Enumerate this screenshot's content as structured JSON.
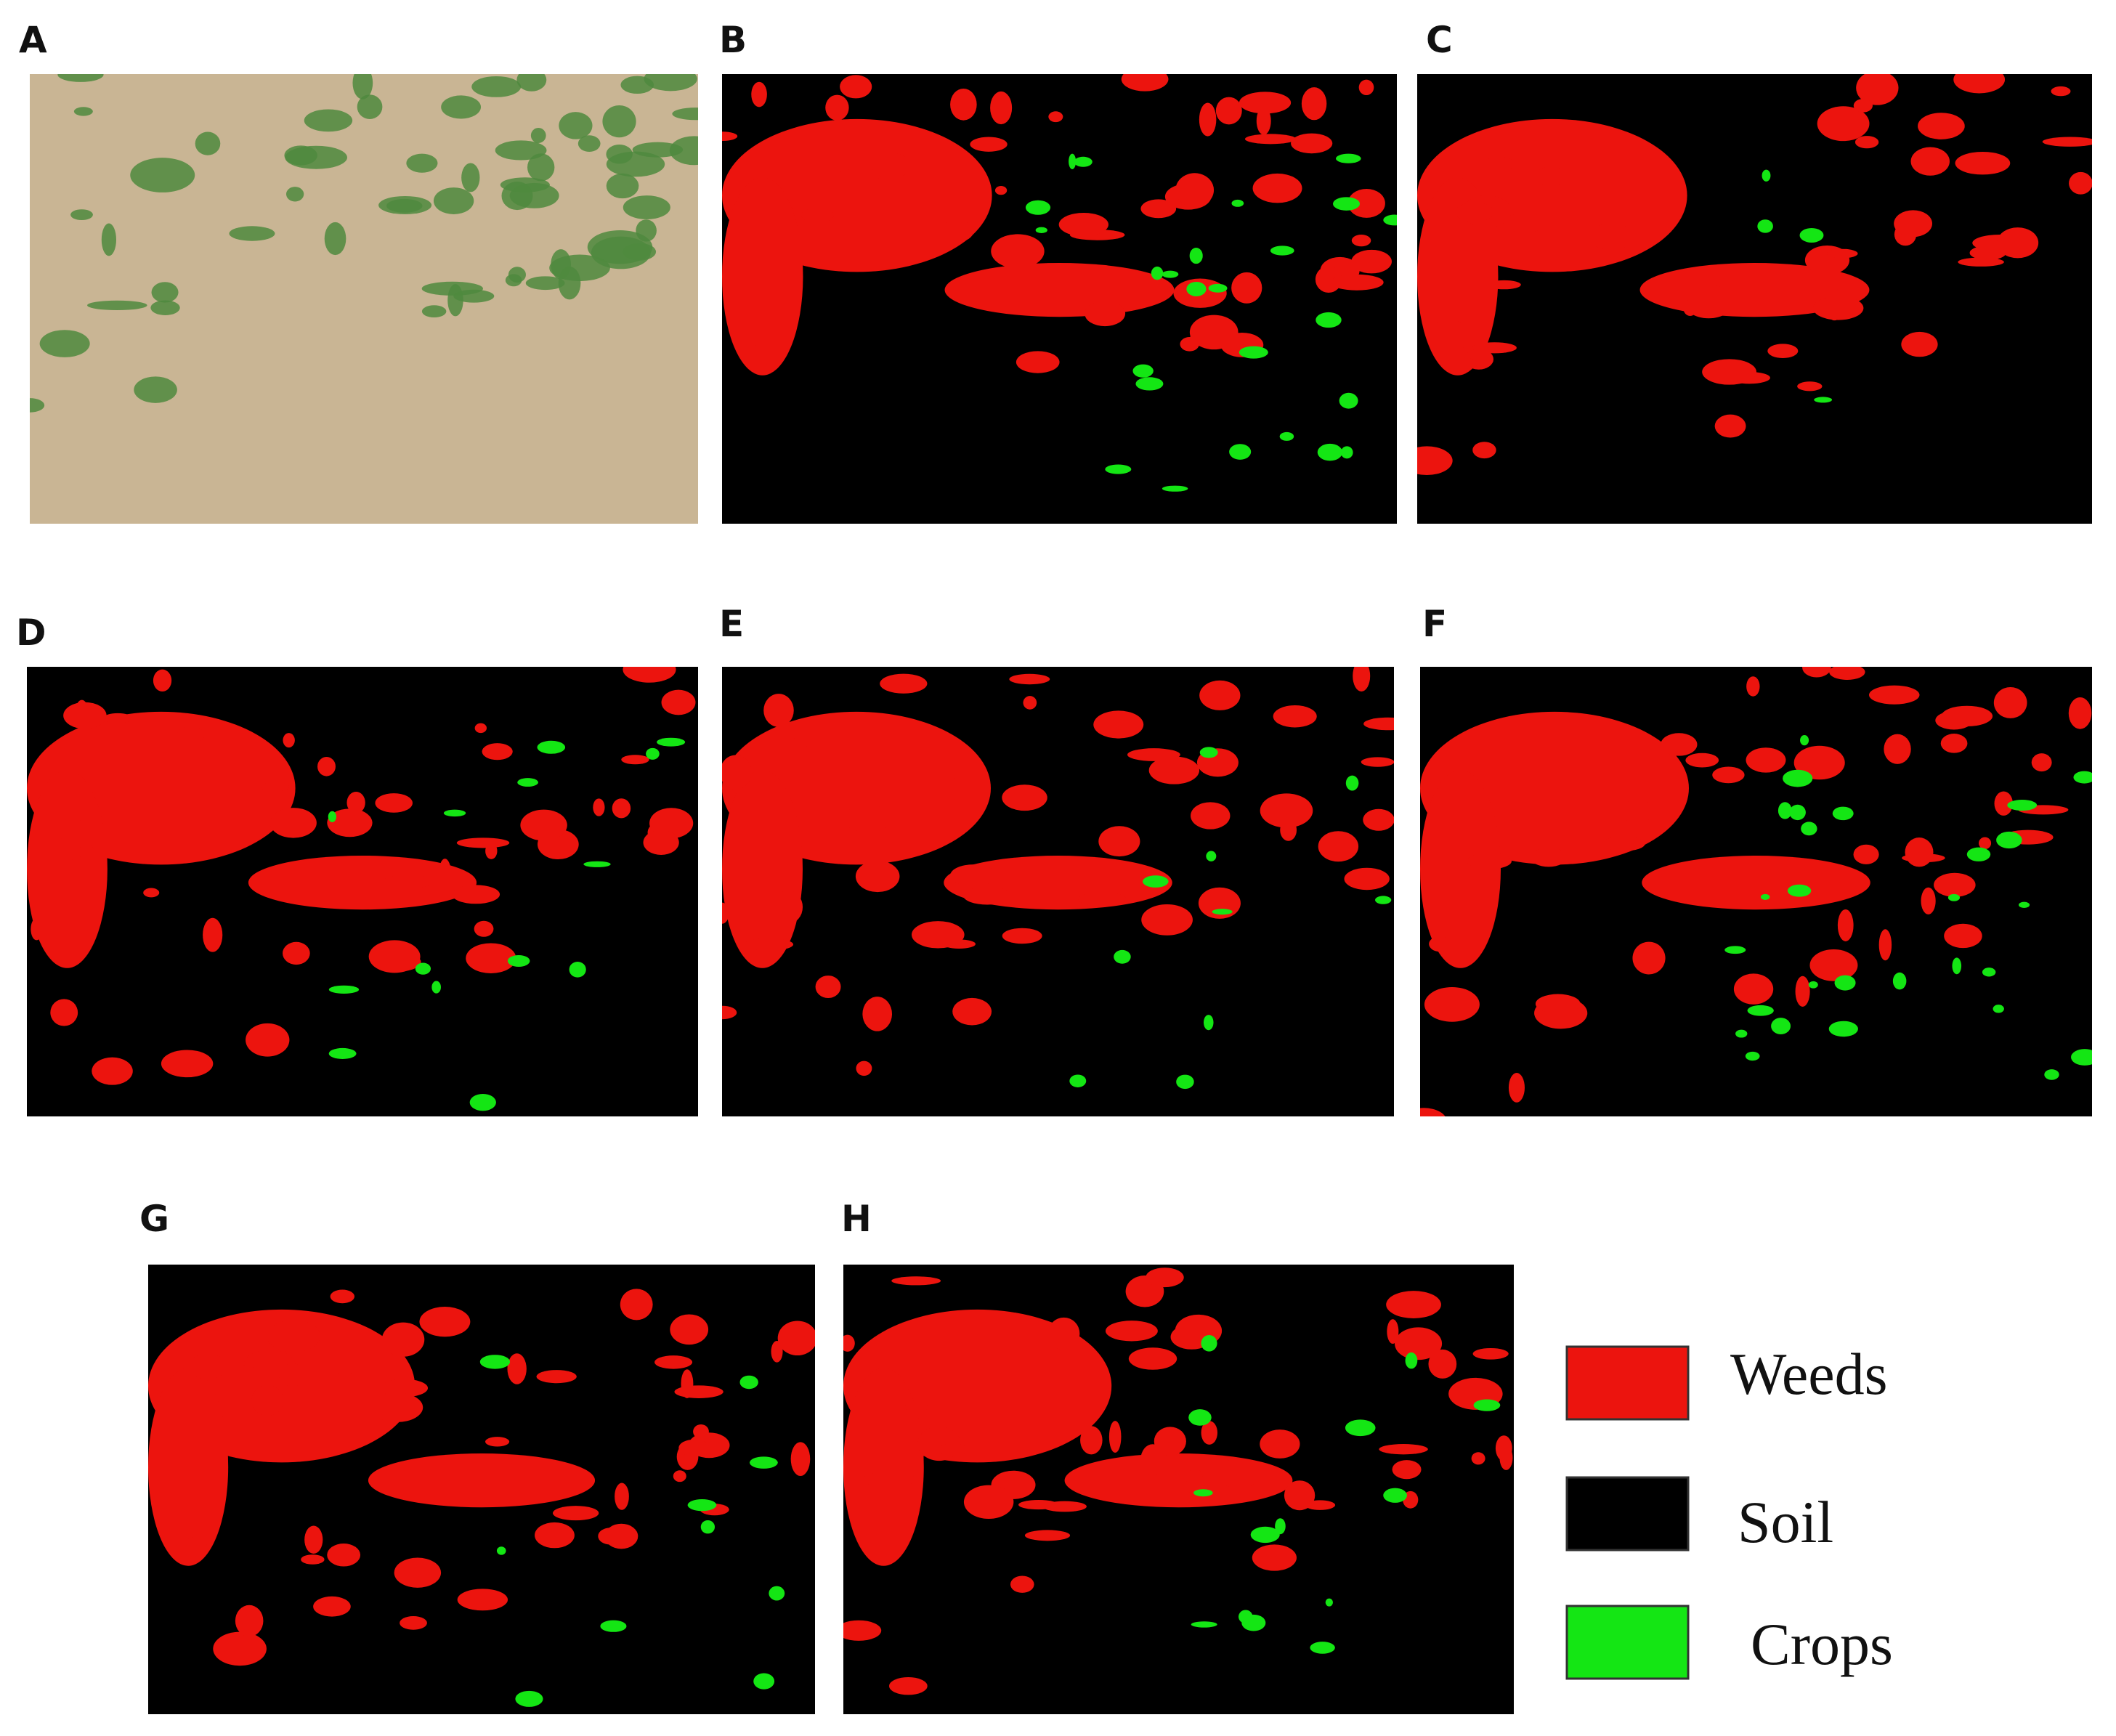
{
  "panels": [
    {
      "label": "A"
    },
    {
      "label": "B"
    },
    {
      "label": "C"
    },
    {
      "label": "D"
    },
    {
      "label": "E"
    },
    {
      "label": "F"
    },
    {
      "label": "G"
    },
    {
      "label": "H"
    }
  ],
  "legend": [
    {
      "label": "Weeds",
      "color": "#ec140e"
    },
    {
      "label": "Soil",
      "color": "#000000"
    },
    {
      "label": "Crops",
      "color": "#14e614"
    }
  ]
}
